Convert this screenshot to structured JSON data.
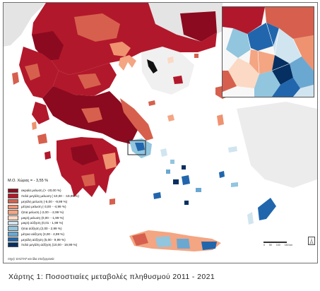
{
  "map": {
    "mean_label": "Μ.Ο. Χώρας = - 3,55 %",
    "legend": [
      {
        "label": "ακραία μείωση (> -20,00 %)",
        "color": "#8b0a1f"
      },
      {
        "label": "πολύ μεγάλη μείωση (-10,00 - -19,99 %)",
        "color": "#b2182b"
      },
      {
        "label": "μεγάλη μείωση (-5,00 - -9,99 %)",
        "color": "#d6604d"
      },
      {
        "label": "μέτρια μείωση (-3,00 - -4,99 %)",
        "color": "#ef9270"
      },
      {
        "label": "ήπια μείωση (-2,00 - -2,99 %)",
        "color": "#f4a582"
      },
      {
        "label": "μικρή μείωση (0,00 - -1,99 %)",
        "color": "#fbd9c4"
      },
      {
        "label": "μικρή αύξηση (0,01 - 1,99 %)",
        "color": "#d1e5f0"
      },
      {
        "label": "ήπια αύξηση (2,00 - 2,99 %)",
        "color": "#92c5de"
      },
      {
        "label": "μέτρια αύξηση (3,00 - 4,99 %)",
        "color": "#6aa8d1"
      },
      {
        "label": "μεγάλη αύξηση (5,00 - 9,99 %)",
        "color": "#2166ac"
      },
      {
        "label": "πολύ μεγάλη αύξηση (10,00 - 19,99 %)",
        "color": "#053061"
      }
    ],
    "source": "πηγή: ΕΛΣΤΑΤ και ίδια επεξεργασία",
    "scale_labels": [
      "0",
      "50",
      "100",
      "150 km"
    ],
    "north_label": "N",
    "caption": "Χάρτης 1: Ποσοστιαίες μεταβολές πληθυσμού 2011 - 2021"
  }
}
